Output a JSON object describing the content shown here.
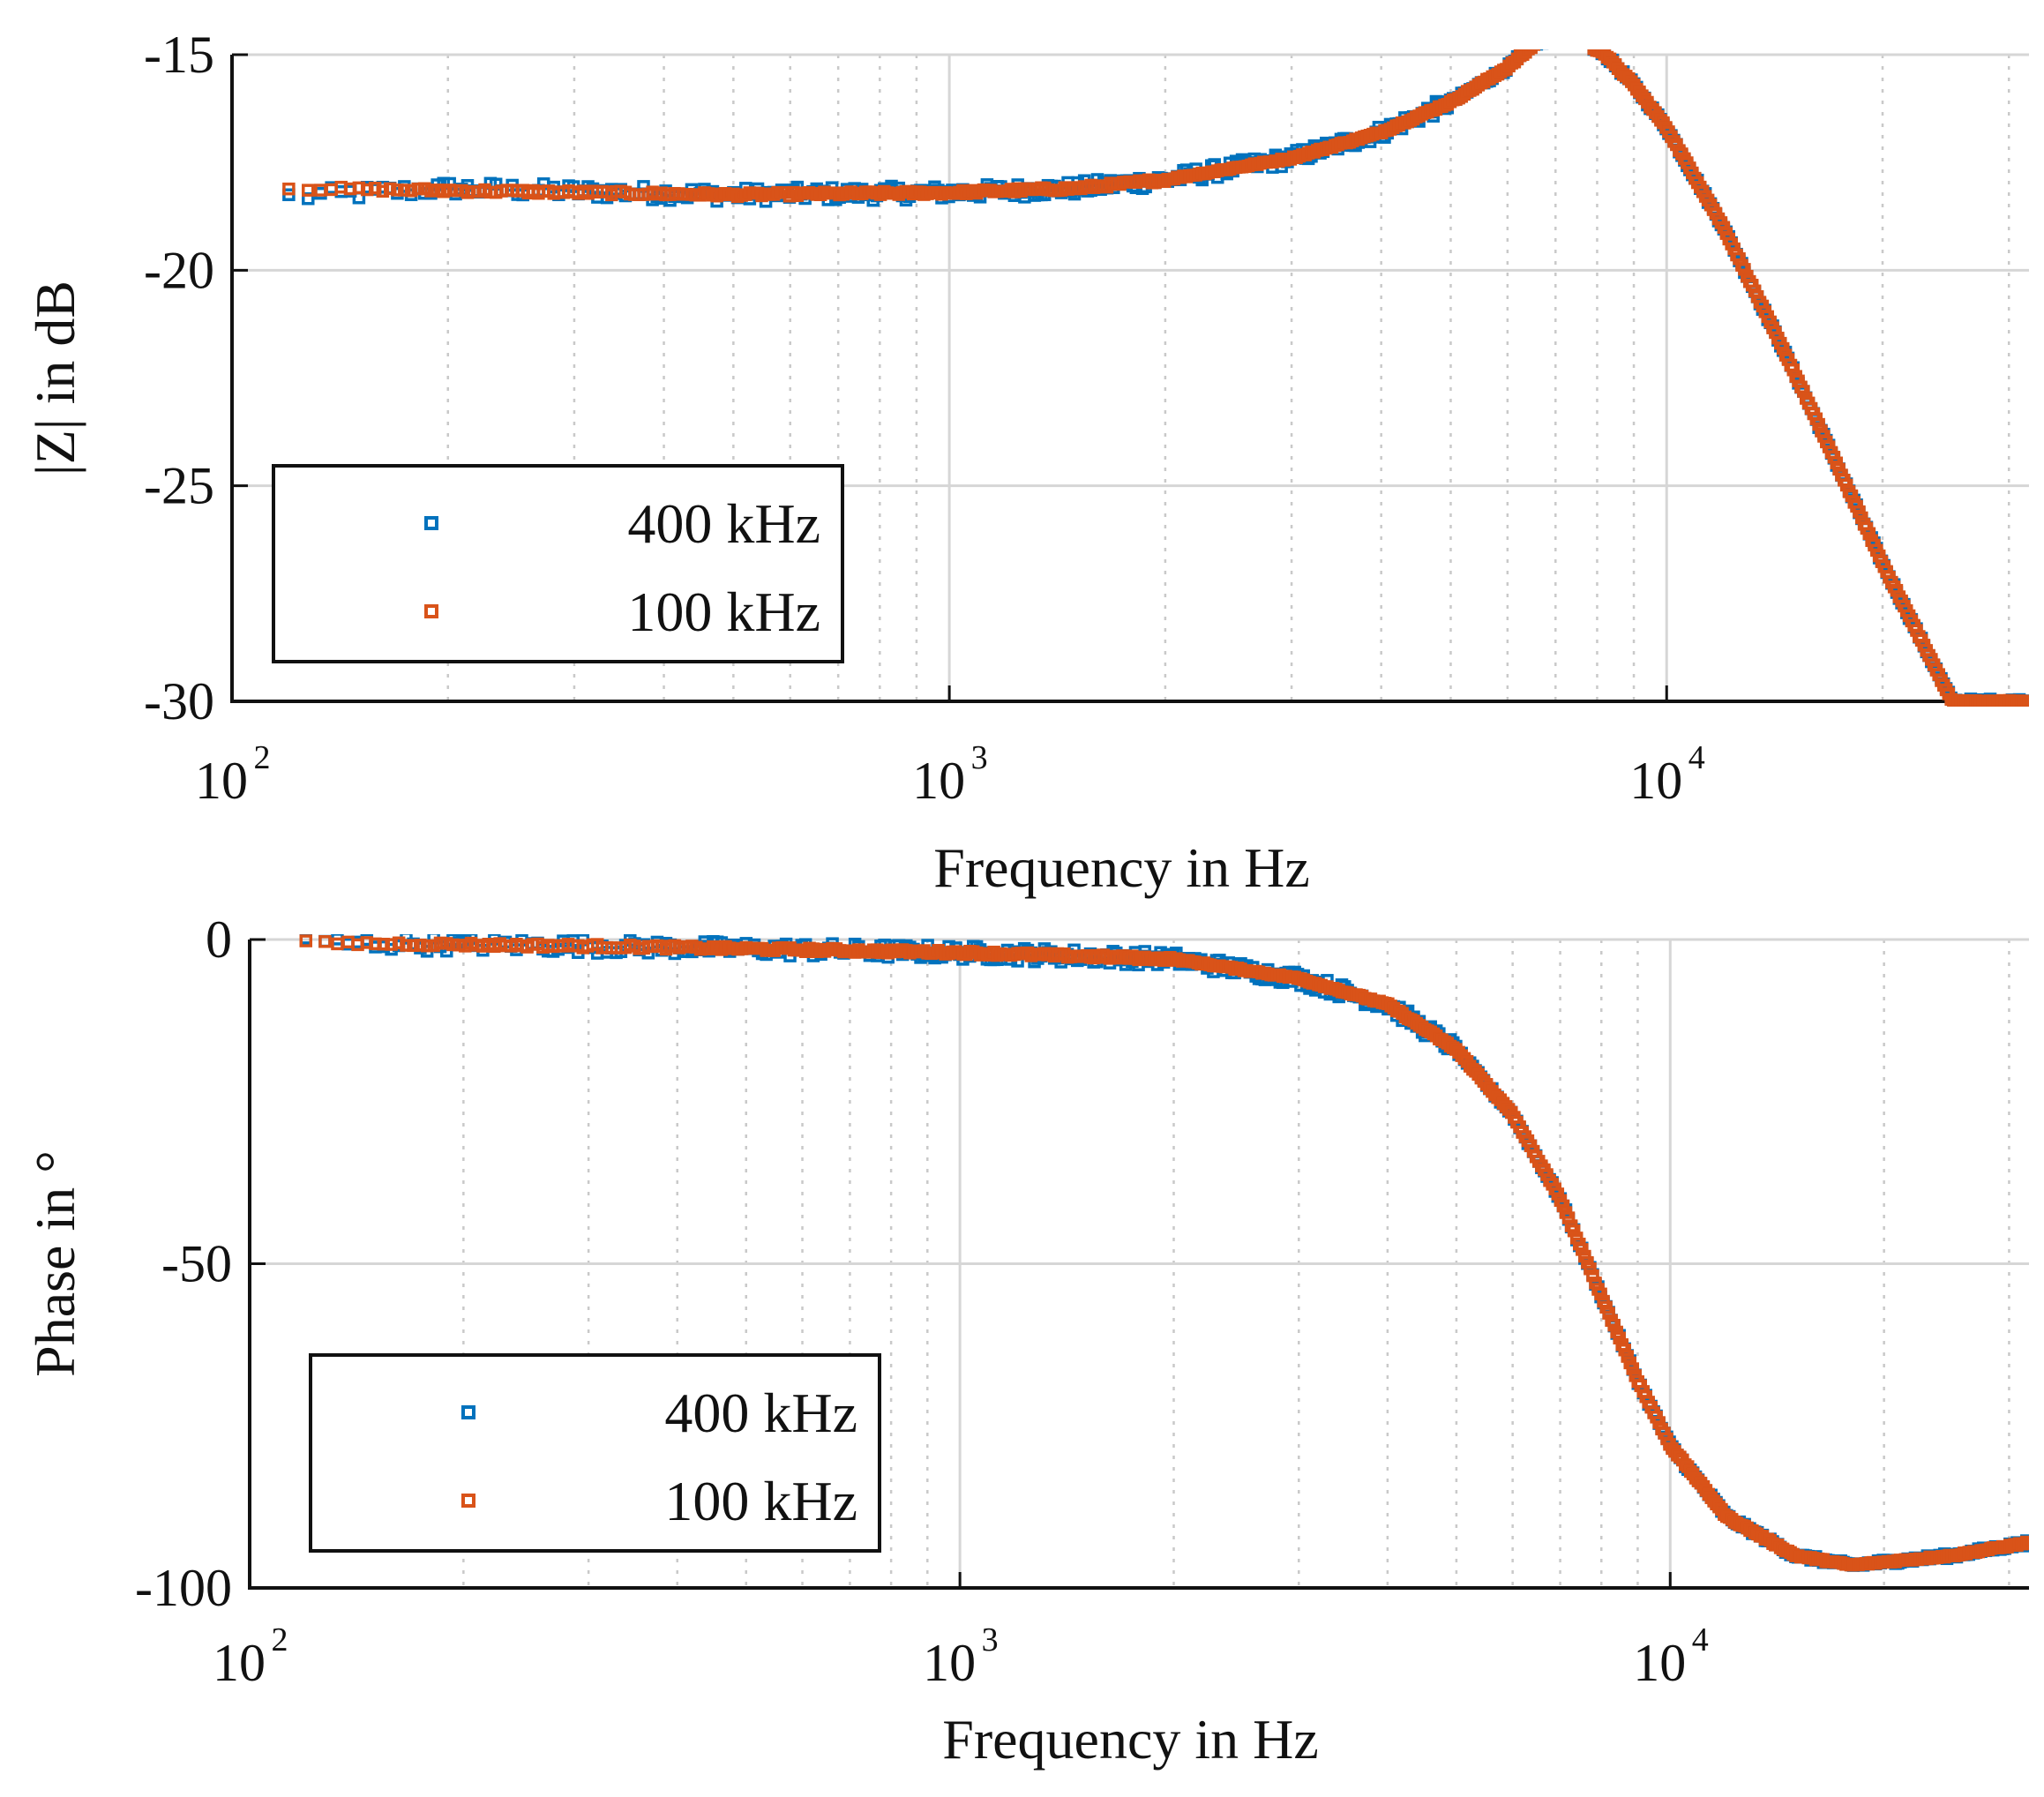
{
  "chart_data": [
    {
      "type": "scatter",
      "xscale": "log",
      "xlim": [
        100,
        32000
      ],
      "ylim": [
        -30,
        -15
      ],
      "yticks": [
        -15,
        -20,
        -25,
        -30
      ],
      "xticks": [
        100,
        1000,
        10000
      ],
      "xticklabels": [
        {
          "base": "10",
          "exp": "2"
        },
        {
          "base": "10",
          "exp": "3"
        },
        {
          "base": "10",
          "exp": "4"
        }
      ],
      "xlabel": "Frequency in Hz",
      "ylabel": "|Z| in dB",
      "grid": true,
      "legend_position": "bottom-left",
      "series": [
        {
          "name": "400 kHz",
          "color": "#0072BD",
          "marker": "square",
          "anchors": [
            [
              120,
              -18.3
            ],
            [
              200,
              -18.1
            ],
            [
              500,
              -18.25
            ],
            [
              1000,
              -18.2
            ],
            [
              1500,
              -18.1
            ],
            [
              2000,
              -17.9
            ],
            [
              3000,
              -17.4
            ],
            [
              4000,
              -16.8
            ],
            [
              5000,
              -16.1
            ],
            [
              6000,
              -15.3
            ],
            [
              6600,
              -14.7
            ],
            [
              8100,
              -14.9
            ],
            [
              9000,
              -15.7
            ],
            [
              10000,
              -16.7
            ],
            [
              12000,
              -19.0
            ],
            [
              15000,
              -22.3
            ],
            [
              20000,
              -26.8
            ],
            [
              25000,
              -30.0
            ]
          ]
        },
        {
          "name": "100 kHz",
          "color": "#D95319",
          "marker": "square",
          "anchors": [
            [
              120,
              -18.1
            ],
            [
              200,
              -18.15
            ],
            [
              500,
              -18.25
            ],
            [
              1000,
              -18.2
            ],
            [
              1500,
              -18.1
            ],
            [
              2000,
              -17.9
            ],
            [
              3000,
              -17.4
            ],
            [
              4000,
              -16.8
            ],
            [
              5000,
              -16.1
            ],
            [
              6000,
              -15.3
            ],
            [
              6600,
              -14.7
            ],
            [
              8100,
              -14.9
            ],
            [
              9000,
              -15.7
            ],
            [
              10000,
              -16.7
            ],
            [
              12000,
              -19.0
            ],
            [
              15000,
              -22.3
            ],
            [
              20000,
              -26.8
            ],
            [
              25000,
              -30.0
            ]
          ]
        }
      ]
    },
    {
      "type": "scatter",
      "xscale": "log",
      "xlim": [
        100,
        32000
      ],
      "ylim": [
        -100,
        0
      ],
      "yticks": [
        0,
        -50,
        -100
      ],
      "xticks": [
        100,
        1000,
        10000
      ],
      "xticklabels": [
        {
          "base": "10",
          "exp": "2"
        },
        {
          "base": "10",
          "exp": "3"
        },
        {
          "base": "10",
          "exp": "4"
        }
      ],
      "xlabel": "Frequency in Hz",
      "ylabel": "Phase in °",
      "grid": true,
      "legend_position": "bottom-left",
      "series": [
        {
          "name": "400 kHz",
          "color": "#0072BD",
          "marker": "square",
          "anchors": [
            [
              120,
              -0.5
            ],
            [
              300,
              -1.0
            ],
            [
              1000,
              -2.0
            ],
            [
              2000,
              -3.0
            ],
            [
              3000,
              -6.0
            ],
            [
              4000,
              -10.0
            ],
            [
              5000,
              -17.0
            ],
            [
              6000,
              -27.0
            ],
            [
              7000,
              -40.0
            ],
            [
              8000,
              -55.0
            ],
            [
              9000,
              -68.0
            ],
            [
              10000,
              -78.0
            ],
            [
              12000,
              -89.0
            ],
            [
              15000,
              -95.0
            ],
            [
              18000,
              -96.5
            ],
            [
              25000,
              -95.0
            ],
            [
              32000,
              -93.0
            ]
          ]
        },
        {
          "name": "100 kHz",
          "color": "#D95319",
          "marker": "square",
          "anchors": [
            [
              120,
              -0.5
            ],
            [
              300,
              -1.0
            ],
            [
              1000,
              -2.0
            ],
            [
              2000,
              -3.0
            ],
            [
              3000,
              -6.0
            ],
            [
              4000,
              -10.0
            ],
            [
              5000,
              -17.0
            ],
            [
              6000,
              -27.0
            ],
            [
              7000,
              -40.0
            ],
            [
              8000,
              -55.0
            ],
            [
              9000,
              -68.0
            ],
            [
              10000,
              -78.0
            ],
            [
              12000,
              -89.0
            ],
            [
              15000,
              -95.0
            ],
            [
              18000,
              -96.5
            ],
            [
              25000,
              -95.0
            ],
            [
              32000,
              -93.0
            ]
          ]
        }
      ]
    }
  ]
}
